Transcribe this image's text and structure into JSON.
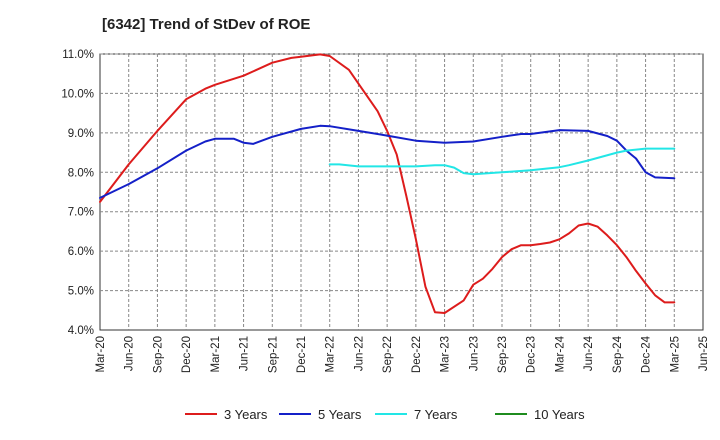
{
  "chart_data": {
    "type": "line",
    "title": "[6342]  Trend of StDev of ROE",
    "xlabel": "",
    "ylabel": "",
    "ylim": [
      4.0,
      11.0
    ],
    "y_ticks": [
      "4.0%",
      "5.0%",
      "6.0%",
      "7.0%",
      "8.0%",
      "9.0%",
      "10.0%",
      "11.0%"
    ],
    "x_ticks": [
      "Mar-20",
      "Jun-20",
      "Sep-20",
      "Dec-20",
      "Mar-21",
      "Jun-21",
      "Sep-21",
      "Dec-21",
      "Mar-22",
      "Jun-22",
      "Sep-22",
      "Dec-22",
      "Mar-23",
      "Jun-23",
      "Sep-23",
      "Dec-23",
      "Mar-24",
      "Jun-24",
      "Sep-24",
      "Dec-24",
      "Mar-25",
      "Jun-25"
    ],
    "grid": true,
    "legend_position": "bottom",
    "series": [
      {
        "name": "3 Years",
        "color": "#dd1c1c",
        "x": [
          "Mar-20",
          "Jun-20",
          "Sep-20",
          "Dec-20",
          "Feb-21",
          "Mar-21",
          "Jun-21",
          "Sep-21",
          "Nov-21",
          "Dec-21",
          "Feb-22",
          "Mar-22",
          "May-22",
          "Jun-22",
          "Aug-22",
          "Sep-22",
          "Oct-22",
          "Nov-22",
          "Dec-22",
          "Jan-23",
          "Feb-23",
          "Mar-23",
          "May-23",
          "Jun-23",
          "Jul-23",
          "Aug-23",
          "Sep-23",
          "Oct-23",
          "Nov-23",
          "Dec-23",
          "Jan-24",
          "Feb-24",
          "Mar-24",
          "Apr-24",
          "May-24",
          "Jun-24",
          "Jul-24",
          "Aug-24",
          "Sep-24",
          "Oct-24",
          "Nov-24",
          "Dec-24",
          "Jan-25",
          "Feb-25",
          "Mar-25"
        ],
        "values": [
          7.25,
          8.2,
          9.05,
          9.85,
          10.12,
          10.22,
          10.45,
          10.78,
          10.9,
          10.93,
          10.99,
          10.95,
          10.6,
          10.25,
          9.55,
          9.05,
          8.45,
          7.4,
          6.3,
          5.1,
          4.45,
          4.43,
          4.75,
          5.15,
          5.3,
          5.55,
          5.85,
          6.05,
          6.15,
          6.15,
          6.18,
          6.22,
          6.3,
          6.45,
          6.65,
          6.7,
          6.62,
          6.4,
          6.15,
          5.85,
          5.5,
          5.18,
          4.88,
          4.7,
          4.7
        ]
      },
      {
        "name": "5 Years",
        "color": "#1420c8",
        "x": [
          "Mar-20",
          "Jun-20",
          "Sep-20",
          "Dec-20",
          "Feb-21",
          "Mar-21",
          "May-21",
          "Jun-21",
          "Jul-21",
          "Sep-21",
          "Dec-21",
          "Feb-22",
          "Mar-22",
          "Jun-22",
          "Sep-22",
          "Dec-22",
          "Mar-23",
          "Jun-23",
          "Sep-23",
          "Nov-23",
          "Dec-23",
          "Mar-24",
          "Jun-24",
          "Aug-24",
          "Sep-24",
          "Oct-24",
          "Nov-24",
          "Dec-24",
          "Jan-25",
          "Mar-25"
        ],
        "values": [
          7.35,
          7.7,
          8.1,
          8.55,
          8.78,
          8.85,
          8.85,
          8.75,
          8.72,
          8.9,
          9.1,
          9.18,
          9.17,
          9.05,
          8.93,
          8.8,
          8.75,
          8.78,
          8.9,
          8.97,
          8.97,
          9.07,
          9.05,
          8.92,
          8.8,
          8.55,
          8.35,
          8.0,
          7.87,
          7.85
        ]
      },
      {
        "name": "7 Years",
        "color": "#22e6e6",
        "x": [
          "Mar-22",
          "Apr-22",
          "Jun-22",
          "Sep-22",
          "Dec-22",
          "Feb-23",
          "Mar-23",
          "Apr-23",
          "May-23",
          "Jun-23",
          "Sep-23",
          "Dec-23",
          "Mar-24",
          "Apr-24",
          "Jun-24",
          "Sep-24",
          "Oct-24",
          "Dec-24",
          "Mar-25"
        ],
        "values": [
          8.2,
          8.2,
          8.15,
          8.15,
          8.15,
          8.18,
          8.18,
          8.12,
          7.98,
          7.95,
          8.0,
          8.05,
          8.13,
          8.18,
          8.3,
          8.5,
          8.55,
          8.6,
          8.6
        ]
      },
      {
        "name": "10 Years",
        "color": "#1f8c1f",
        "x": [],
        "values": []
      }
    ]
  }
}
